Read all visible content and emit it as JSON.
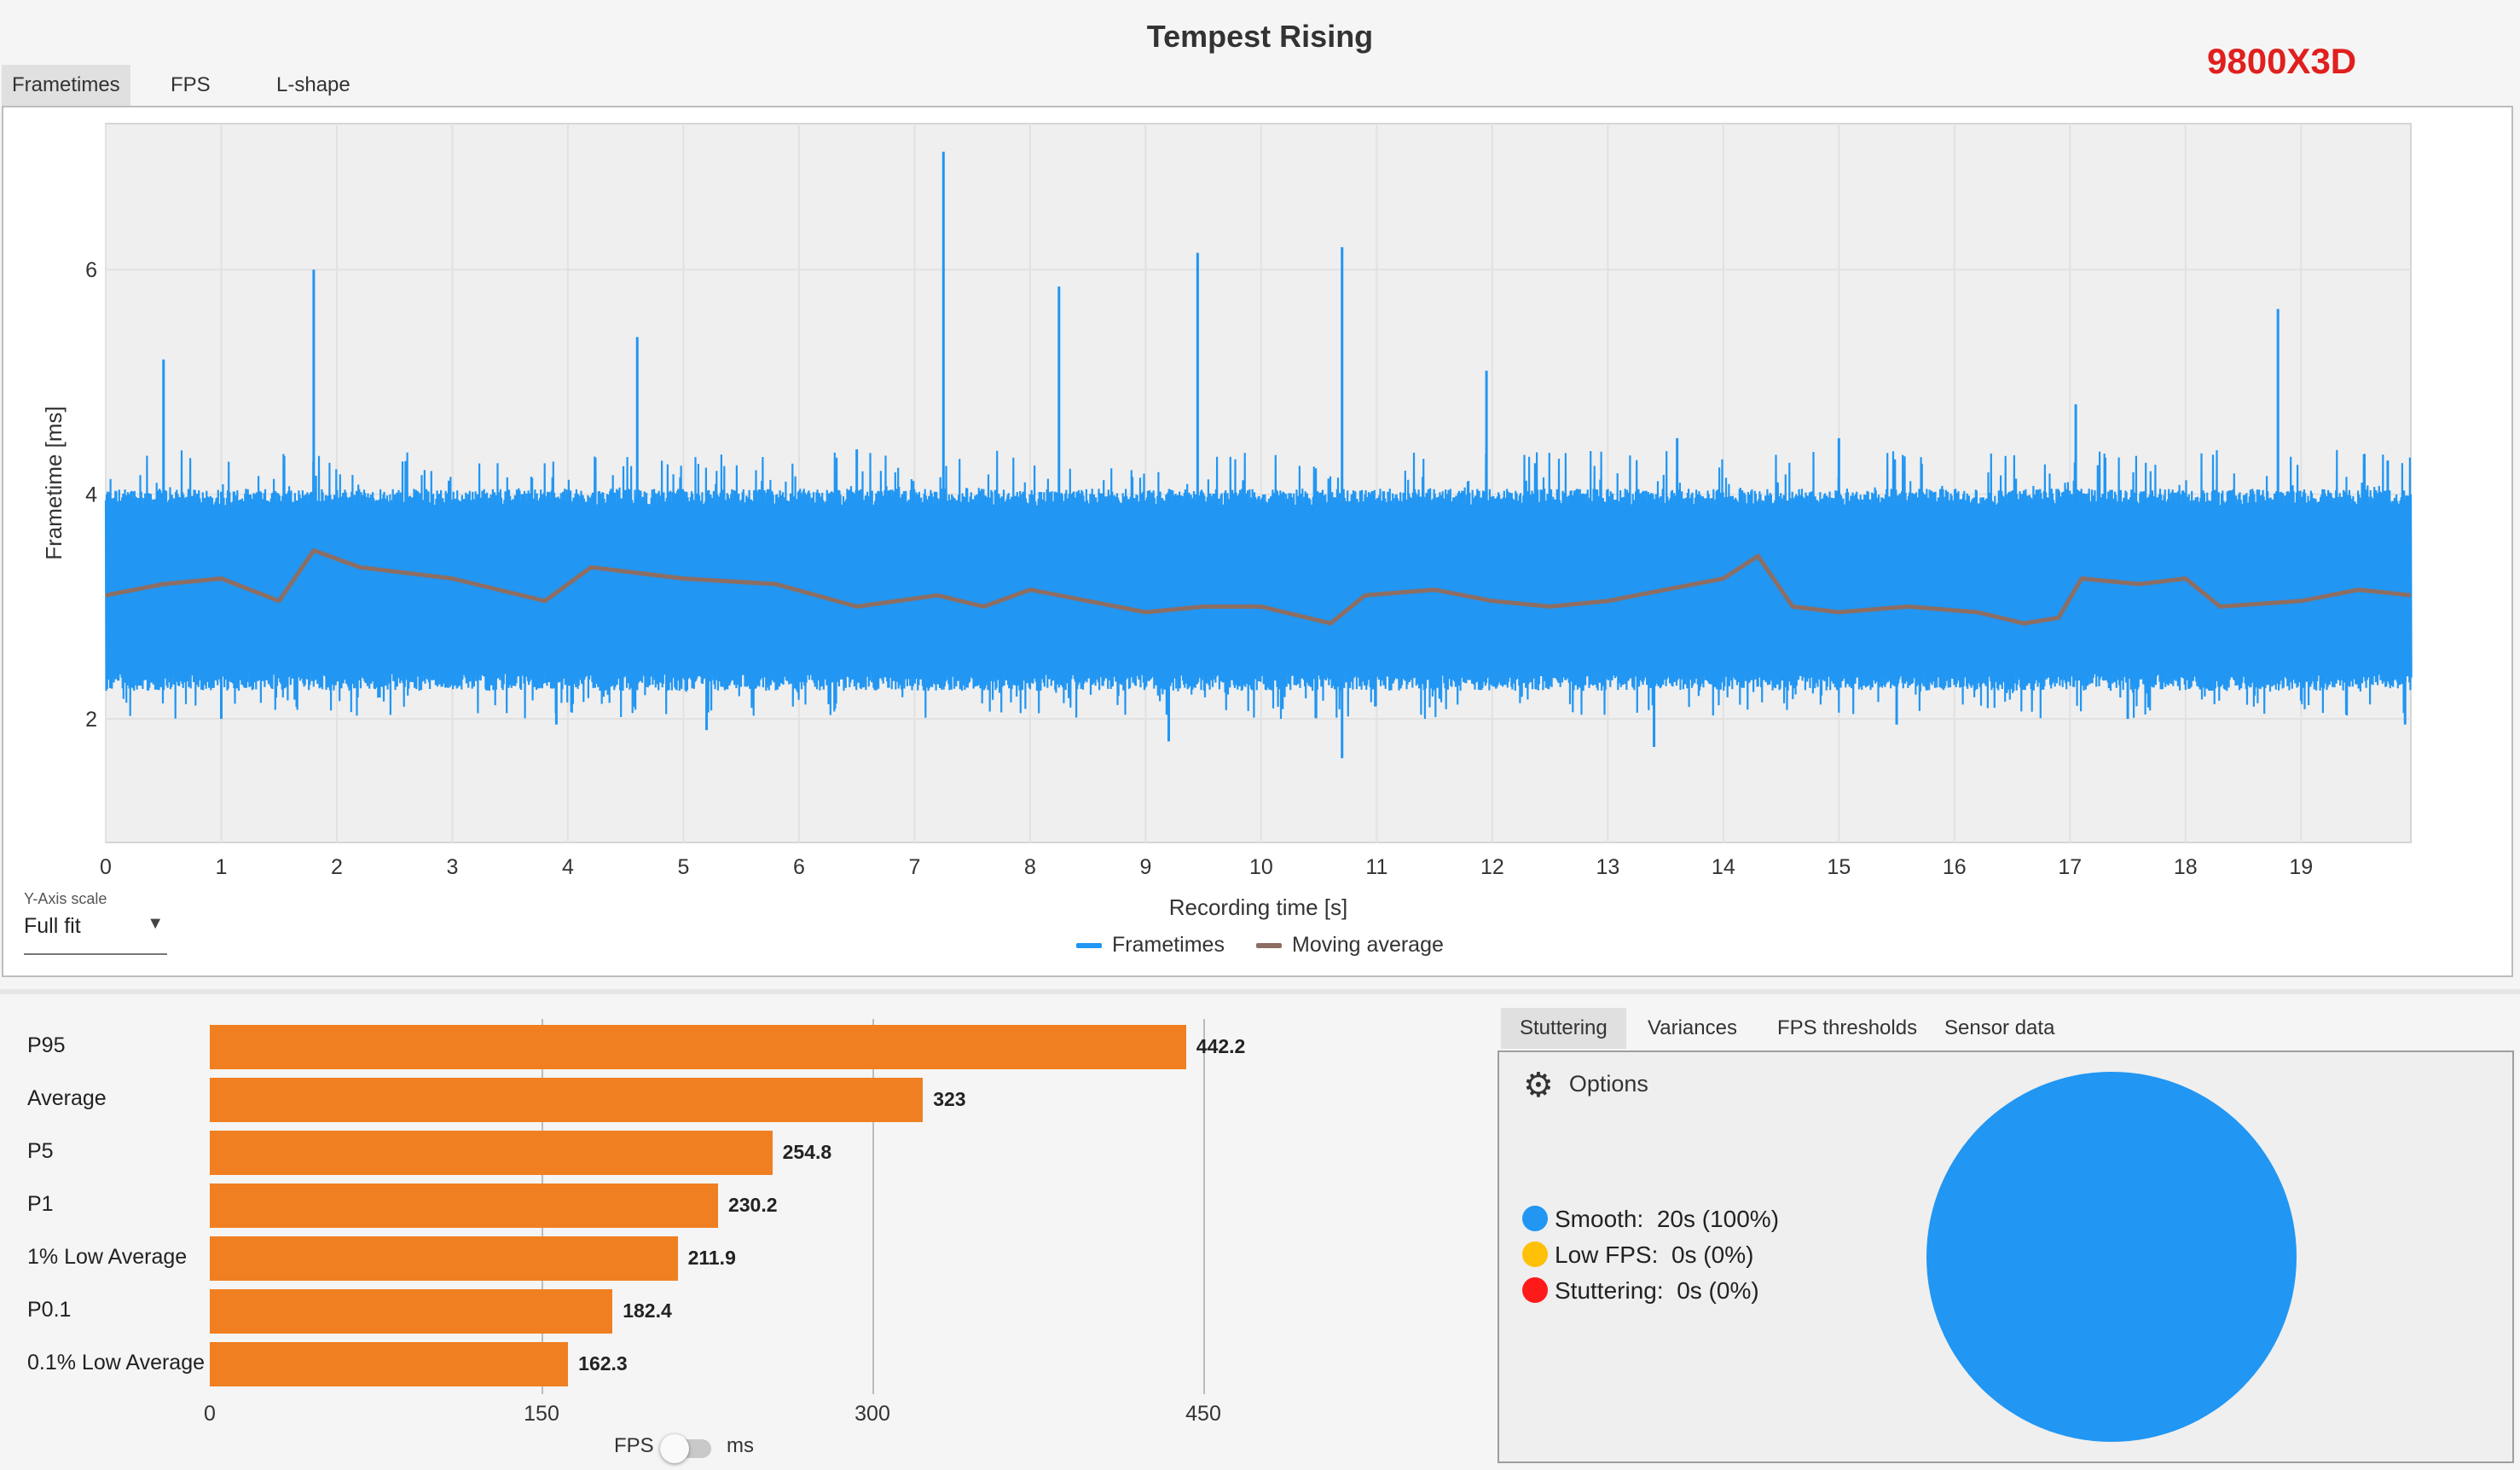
{
  "app": {
    "title": "Tempest Rising",
    "cpu_label": "9800X3D"
  },
  "top_tabs": [
    {
      "label": "Frametimes",
      "active": true
    },
    {
      "label": "FPS",
      "active": false
    },
    {
      "label": "L-shape",
      "active": false
    }
  ],
  "y_axis_scale": {
    "caption": "Y-Axis scale",
    "value": "Full fit"
  },
  "colors": {
    "frametime": "#2196f3",
    "moving_average": "#8d6e63",
    "bars": "#f07f22",
    "smooth": "#2196f3",
    "low_fps": "#ffc107",
    "stuttering": "#ff1a1a",
    "title_red": "#e0201e"
  },
  "chart_data": [
    {
      "type": "line",
      "title": "",
      "xlabel": "Recording time [s]",
      "ylabel": "Frametime [ms]",
      "xlim": [
        0,
        19.95
      ],
      "ylim": [
        0.9,
        7.3
      ],
      "x_ticks": [
        0,
        1,
        2,
        3,
        4,
        5,
        6,
        7,
        8,
        9,
        10,
        11,
        12,
        13,
        14,
        15,
        16,
        17,
        18,
        19
      ],
      "y_ticks": [
        2,
        4,
        6
      ],
      "grid": true,
      "legend": "bottom-center",
      "series": [
        {
          "name": "Frametimes",
          "color": "#2196f3",
          "band_low": 2.4,
          "band_high": 3.9,
          "spikes": [
            [
              0.5,
              5.2
            ],
            [
              1.8,
              6.0
            ],
            [
              4.6,
              5.4
            ],
            [
              6.5,
              4.4
            ],
            [
              7.25,
              7.05
            ],
            [
              8.25,
              5.85
            ],
            [
              9.45,
              6.15
            ],
            [
              10.7,
              6.2
            ],
            [
              11.95,
              5.1
            ],
            [
              13.6,
              4.5
            ],
            [
              15.0,
              4.5
            ],
            [
              17.05,
              4.8
            ],
            [
              18.8,
              5.65
            ],
            [
              19.75,
              4.3
            ]
          ],
          "dips": [
            [
              1.0,
              2.0
            ],
            [
              3.9,
              1.95
            ],
            [
              5.2,
              1.9
            ],
            [
              9.2,
              1.8
            ],
            [
              10.7,
              1.65
            ],
            [
              13.4,
              1.75
            ],
            [
              15.5,
              1.95
            ],
            [
              17.5,
              2.0
            ],
            [
              19.9,
              1.95
            ]
          ]
        },
        {
          "name": "Moving average",
          "color": "#8d6e63",
          "points": [
            [
              0,
              3.1
            ],
            [
              0.5,
              3.2
            ],
            [
              1.0,
              3.25
            ],
            [
              1.5,
              3.05
            ],
            [
              1.8,
              3.5
            ],
            [
              2.2,
              3.35
            ],
            [
              3.0,
              3.25
            ],
            [
              3.8,
              3.05
            ],
            [
              4.2,
              3.35
            ],
            [
              5.0,
              3.25
            ],
            [
              5.8,
              3.2
            ],
            [
              6.5,
              3.0
            ],
            [
              7.2,
              3.1
            ],
            [
              7.6,
              3.0
            ],
            [
              8.0,
              3.15
            ],
            [
              8.5,
              3.05
            ],
            [
              9.0,
              2.95
            ],
            [
              9.5,
              3.0
            ],
            [
              10.0,
              3.0
            ],
            [
              10.6,
              2.85
            ],
            [
              10.9,
              3.1
            ],
            [
              11.5,
              3.15
            ],
            [
              12.0,
              3.05
            ],
            [
              12.5,
              3.0
            ],
            [
              13.0,
              3.05
            ],
            [
              13.5,
              3.15
            ],
            [
              14.0,
              3.25
            ],
            [
              14.3,
              3.45
            ],
            [
              14.6,
              3.0
            ],
            [
              15.0,
              2.95
            ],
            [
              15.6,
              3.0
            ],
            [
              16.2,
              2.95
            ],
            [
              16.6,
              2.85
            ],
            [
              16.9,
              2.9
            ],
            [
              17.1,
              3.25
            ],
            [
              17.6,
              3.2
            ],
            [
              18.0,
              3.25
            ],
            [
              18.3,
              3.0
            ],
            [
              19.0,
              3.05
            ],
            [
              19.5,
              3.15
            ],
            [
              19.95,
              3.1
            ]
          ]
        }
      ]
    },
    {
      "type": "bar",
      "orientation": "horizontal",
      "title": "",
      "categories": [
        "P95",
        "Average",
        "P5",
        "P1",
        "1% Low Average",
        "P0.1",
        "0.1% Low Average"
      ],
      "values": [
        442.2,
        323,
        254.8,
        230.2,
        211.9,
        182.4,
        162.3
      ],
      "value_labels": [
        "442.2",
        "323",
        "254.8",
        "230.2",
        "211.9",
        "182.4",
        "162.3"
      ],
      "xlim": [
        0,
        450
      ],
      "x_ticks": [
        0,
        150,
        300,
        450
      ],
      "x_tick_labels": [
        "0",
        "150",
        "300",
        "450"
      ],
      "color": "#f07f22"
    },
    {
      "type": "pie",
      "labels": [
        "Smooth",
        "Low FPS",
        "Stuttering"
      ],
      "values": [
        100,
        0,
        0
      ],
      "colors": [
        "#2196f3",
        "#ffc107",
        "#ff1a1a"
      ]
    }
  ],
  "unit_toggle": {
    "left": "FPS",
    "right": "ms"
  },
  "right_tabs": [
    {
      "label": "Stuttering",
      "active": true
    },
    {
      "label": "Variances",
      "active": false
    },
    {
      "label": "FPS thresholds",
      "active": false
    },
    {
      "label": "Sensor data",
      "active": false
    }
  ],
  "stutter": {
    "options_label": "Options",
    "rows": [
      {
        "label": "Smooth:",
        "value": "20s (100%)",
        "color": "#2196f3"
      },
      {
        "label": "Low FPS:",
        "value": "0s (0%)",
        "color": "#ffc107"
      },
      {
        "label": "Stuttering:",
        "value": "0s (0%)",
        "color": "#ff1a1a"
      }
    ]
  }
}
